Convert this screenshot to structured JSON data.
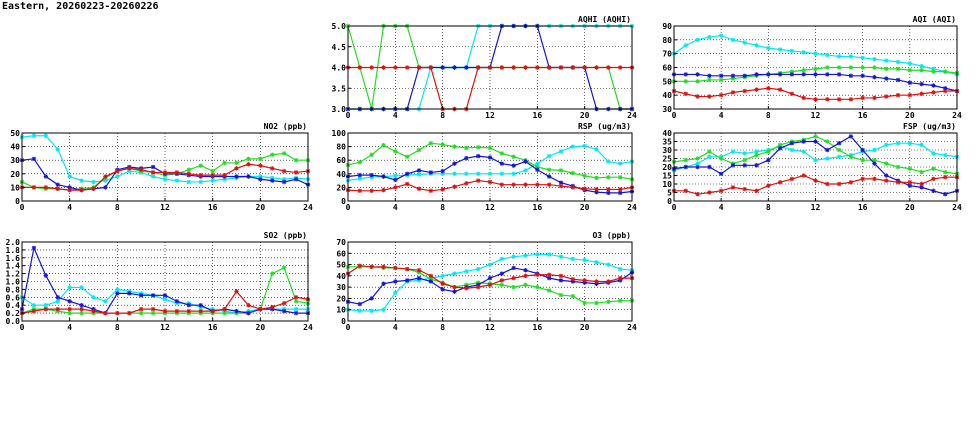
{
  "page": {
    "title": "Eastern, 20260223-20260226"
  },
  "colors": {
    "cyan": "#00e8f0",
    "green": "#22dd22",
    "blue": "#1414d8",
    "red": "#dd1111",
    "grid": "#000000"
  },
  "chart_data": [
    {
      "id": "aqhi",
      "type": "line",
      "title": "AQHI (AQHI)",
      "xlim": [
        0,
        24
      ],
      "xticks": [
        0,
        4,
        8,
        12,
        16,
        20,
        24
      ],
      "ylim": [
        3,
        5
      ],
      "yticks": [
        "3.0",
        "3.5",
        "4.0",
        "4.5",
        "5.0"
      ],
      "series": [
        {
          "color": "cyan",
          "values": [
            3,
            3,
            3,
            3,
            3,
            3,
            3,
            4,
            4,
            4,
            4,
            5,
            5,
            5,
            5,
            5,
            5,
            5,
            5,
            5,
            5,
            5,
            5,
            5,
            5
          ]
        },
        {
          "color": "green",
          "values": [
            5,
            4,
            3,
            5,
            5,
            5,
            4,
            4,
            4,
            4,
            4,
            4,
            4,
            4,
            4,
            4,
            4,
            4,
            4,
            4,
            4,
            4,
            4,
            3,
            3
          ]
        },
        {
          "color": "blue",
          "values": [
            3,
            3,
            3,
            3,
            3,
            3,
            4,
            4,
            4,
            4,
            4,
            4,
            4,
            5,
            5,
            5,
            5,
            4,
            4,
            4,
            4,
            3,
            3,
            3,
            3
          ]
        },
        {
          "color": "red",
          "values": [
            4,
            4,
            4,
            4,
            4,
            4,
            4,
            4,
            3,
            3,
            3,
            4,
            4,
            4,
            4,
            4,
            4,
            4,
            4,
            4,
            4,
            4,
            4,
            4,
            4
          ]
        }
      ]
    },
    {
      "id": "aqi",
      "type": "line",
      "title": "AQI (AQI)",
      "xlim": [
        0,
        24
      ],
      "xticks": [
        0,
        4,
        8,
        12,
        16,
        20,
        24
      ],
      "ylim": [
        30,
        90
      ],
      "yticks": [
        "30",
        "40",
        "50",
        "60",
        "70",
        "80",
        "90"
      ],
      "series": [
        {
          "color": "cyan",
          "values": [
            70,
            76,
            80,
            82,
            83,
            80,
            78,
            76,
            74,
            73,
            72,
            71,
            70,
            69,
            68,
            68,
            67,
            66,
            65,
            64,
            63,
            61,
            59,
            57,
            55
          ]
        },
        {
          "color": "green",
          "values": [
            50,
            50,
            50,
            51,
            51,
            52,
            53,
            54,
            55,
            56,
            57,
            58,
            59,
            60,
            60,
            60,
            60,
            60,
            59,
            59,
            58,
            58,
            57,
            57,
            56
          ]
        },
        {
          "color": "blue",
          "values": [
            55,
            55,
            55,
            54,
            54,
            54,
            54,
            55,
            55,
            55,
            55,
            55,
            55,
            55,
            55,
            54,
            54,
            53,
            52,
            51,
            49,
            48,
            47,
            45,
            43
          ]
        },
        {
          "color": "red",
          "values": [
            43,
            41,
            39,
            39,
            40,
            42,
            43,
            44,
            45,
            44,
            41,
            38,
            37,
            37,
            37,
            37,
            38,
            38,
            39,
            40,
            40,
            41,
            42,
            43,
            43
          ]
        }
      ]
    },
    {
      "id": "no2",
      "type": "line",
      "title": "NO2 (ppb)",
      "xlim": [
        0,
        24
      ],
      "xticks": [
        0,
        4,
        8,
        12,
        16,
        20,
        24
      ],
      "ylim": [
        0,
        50
      ],
      "yticks": [
        "0",
        "10",
        "20",
        "30",
        "40",
        "50"
      ],
      "series": [
        {
          "color": "cyan",
          "values": [
            47,
            48,
            48,
            38,
            18,
            15,
            14,
            15,
            18,
            22,
            21,
            18,
            16,
            15,
            14,
            14,
            15,
            16,
            17,
            18,
            18,
            17,
            16,
            17,
            16
          ]
        },
        {
          "color": "green",
          "values": [
            14,
            10,
            9,
            9,
            8,
            9,
            10,
            17,
            22,
            24,
            22,
            21,
            19,
            20,
            23,
            26,
            22,
            28,
            28,
            31,
            31,
            34,
            35,
            30,
            30
          ]
        },
        {
          "color": "blue",
          "values": [
            30,
            31,
            18,
            12,
            10,
            8,
            9,
            10,
            23,
            25,
            24,
            25,
            20,
            20,
            19,
            18,
            18,
            18,
            18,
            18,
            16,
            15,
            14,
            16,
            12
          ]
        },
        {
          "color": "red",
          "values": [
            10,
            10,
            10,
            9,
            8,
            8,
            9,
            18,
            22,
            24,
            23,
            21,
            21,
            21,
            20,
            19,
            19,
            19,
            24,
            27,
            26,
            24,
            22,
            21,
            22
          ]
        }
      ]
    },
    {
      "id": "rsp",
      "type": "line",
      "title": "RSP (ug/m3)",
      "xlim": [
        0,
        24
      ],
      "xticks": [
        0,
        4,
        8,
        12,
        16,
        20,
        24
      ],
      "ylim": [
        0,
        100
      ],
      "yticks": [
        "0",
        "20",
        "40",
        "60",
        "80",
        "100"
      ],
      "series": [
        {
          "color": "cyan",
          "values": [
            30,
            33,
            35,
            36,
            37,
            38,
            39,
            40,
            40,
            40,
            40,
            40,
            40,
            40,
            40,
            45,
            55,
            66,
            73,
            80,
            81,
            76,
            58,
            55,
            58
          ]
        },
        {
          "color": "green",
          "values": [
            53,
            57,
            68,
            82,
            73,
            65,
            75,
            85,
            83,
            80,
            78,
            79,
            78,
            70,
            65,
            60,
            50,
            46,
            45,
            41,
            37,
            34,
            35,
            35,
            32
          ]
        },
        {
          "color": "blue",
          "values": [
            36,
            38,
            38,
            36,
            31,
            40,
            45,
            42,
            44,
            55,
            63,
            66,
            64,
            55,
            52,
            58,
            46,
            36,
            27,
            22,
            16,
            13,
            12,
            12,
            14
          ]
        },
        {
          "color": "red",
          "values": [
            16,
            15,
            15,
            16,
            20,
            25,
            18,
            15,
            17,
            21,
            26,
            30,
            28,
            24,
            24,
            24,
            24,
            24,
            22,
            20,
            18,
            17,
            17,
            17,
            20
          ]
        }
      ]
    },
    {
      "id": "fsp",
      "type": "line",
      "title": "FSP (ug/m3)",
      "xlim": [
        0,
        24
      ],
      "xticks": [
        0,
        4,
        8,
        12,
        16,
        20,
        24
      ],
      "ylim": [
        0,
        40
      ],
      "yticks": [
        "0",
        "5",
        "10",
        "15",
        "20",
        "25",
        "30",
        "35",
        "40"
      ],
      "series": [
        {
          "color": "cyan",
          "values": [
            18,
            20,
            22,
            26,
            26,
            29,
            28,
            29,
            30,
            32,
            30,
            29,
            24,
            25,
            26,
            27,
            29,
            30,
            33,
            34,
            34,
            33,
            28,
            27,
            26
          ]
        },
        {
          "color": "green",
          "values": [
            23,
            24,
            25,
            29,
            25,
            22,
            24,
            27,
            29,
            33,
            35,
            36,
            38,
            35,
            30,
            26,
            24,
            24,
            22,
            20,
            19,
            17,
            19,
            17,
            16
          ]
        },
        {
          "color": "blue",
          "values": [
            19,
            20,
            20,
            20,
            16,
            21,
            21,
            21,
            24,
            31,
            34,
            35,
            35,
            30,
            34,
            38,
            30,
            22,
            15,
            12,
            9,
            8,
            6,
            4,
            6
          ]
        },
        {
          "color": "red",
          "values": [
            6,
            6,
            4,
            5,
            6,
            8,
            7,
            6,
            9,
            11,
            13,
            15,
            12,
            10,
            10,
            11,
            13,
            13,
            12,
            11,
            11,
            10,
            13,
            14,
            14
          ]
        }
      ]
    },
    {
      "id": "so2",
      "type": "line",
      "title": "SO2 (ppb)",
      "xlim": [
        0,
        24
      ],
      "xticks": [
        0,
        4,
        8,
        12,
        16,
        20,
        24
      ],
      "ylim": [
        0,
        2
      ],
      "yticks": [
        "0.0",
        "0.2",
        "0.4",
        "0.6",
        "0.8",
        "1.0",
        "1.2",
        "1.4",
        "1.6",
        "1.8",
        "2.0"
      ],
      "series": [
        {
          "color": "cyan",
          "values": [
            0.6,
            0.4,
            0.4,
            0.5,
            0.85,
            0.85,
            0.6,
            0.5,
            0.8,
            0.75,
            0.7,
            0.65,
            0.55,
            0.45,
            0.45,
            0.35,
            0.3,
            0.25,
            0.2,
            0.25,
            0.3,
            0.3,
            0.3,
            0.3,
            0.3
          ]
        },
        {
          "color": "green",
          "values": [
            0.2,
            0.3,
            0.3,
            0.25,
            0.2,
            0.2,
            0.2,
            0.2,
            0.2,
            0.2,
            0.2,
            0.2,
            0.2,
            0.2,
            0.2,
            0.2,
            0.2,
            0.2,
            0.2,
            0.2,
            0.3,
            1.2,
            1.35,
            0.5,
            0.45
          ]
        },
        {
          "color": "blue",
          "values": [
            0.3,
            1.85,
            1.15,
            0.6,
            0.5,
            0.4,
            0.3,
            0.2,
            0.7,
            0.7,
            0.65,
            0.65,
            0.65,
            0.5,
            0.4,
            0.4,
            0.25,
            0.3,
            0.25,
            0.2,
            0.3,
            0.3,
            0.25,
            0.2,
            0.2
          ]
        },
        {
          "color": "red",
          "values": [
            0.2,
            0.25,
            0.3,
            0.3,
            0.3,
            0.3,
            0.25,
            0.2,
            0.2,
            0.2,
            0.3,
            0.3,
            0.25,
            0.25,
            0.25,
            0.25,
            0.25,
            0.3,
            0.75,
            0.4,
            0.3,
            0.35,
            0.45,
            0.6,
            0.55
          ]
        }
      ]
    },
    {
      "id": "o3",
      "type": "line",
      "title": "O3 (ppb)",
      "xlim": [
        0,
        24
      ],
      "xticks": [
        0,
        4,
        8,
        12,
        16,
        20,
        24
      ],
      "ylim": [
        0,
        70
      ],
      "yticks": [
        "0",
        "10",
        "20",
        "30",
        "40",
        "50",
        "60",
        "70"
      ],
      "series": [
        {
          "color": "cyan",
          "values": [
            10,
            9,
            9,
            10,
            25,
            35,
            36,
            38,
            40,
            42,
            44,
            46,
            50,
            55,
            57,
            58,
            59,
            59,
            57,
            55,
            54,
            52,
            50,
            46,
            45
          ]
        },
        {
          "color": "green",
          "values": [
            48,
            48,
            48,
            47,
            47,
            46,
            43,
            37,
            34,
            30,
            32,
            34,
            33,
            32,
            30,
            32,
            30,
            27,
            23,
            22,
            16,
            16,
            17,
            18,
            18
          ]
        },
        {
          "color": "blue",
          "values": [
            17,
            15,
            20,
            33,
            35,
            36,
            38,
            35,
            28,
            26,
            30,
            32,
            38,
            42,
            47,
            45,
            42,
            38,
            36,
            35,
            34,
            33,
            34,
            36,
            43
          ]
        },
        {
          "color": "red",
          "values": [
            42,
            49,
            48,
            48,
            47,
            46,
            45,
            40,
            33,
            30,
            29,
            30,
            32,
            36,
            38,
            40,
            41,
            41,
            40,
            37,
            36,
            35,
            35,
            38,
            38
          ]
        }
      ]
    }
  ]
}
